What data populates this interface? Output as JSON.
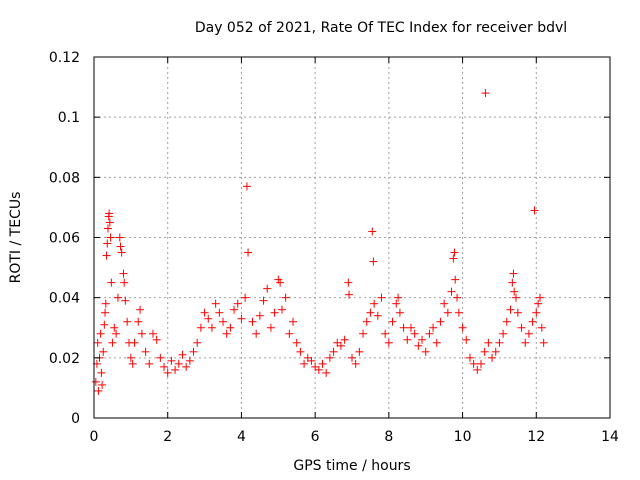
{
  "chart_data": {
    "type": "scatter",
    "title": "Day 052 of 2021, Rate Of TEC Index for receiver bdvl",
    "xlabel": "GPS time / hours",
    "ylabel": "ROTI / TECUs",
    "xlim": [
      0,
      14
    ],
    "ylim": [
      0,
      0.12
    ],
    "xticks": [
      0,
      2,
      4,
      6,
      8,
      10,
      12,
      14
    ],
    "yticks": [
      0,
      0.02,
      0.04,
      0.06,
      0.08,
      0.1,
      0.12
    ],
    "xtick_labels": [
      "0",
      "2",
      "4",
      "6",
      "8",
      "10",
      "12",
      "14"
    ],
    "ytick_labels": [
      "0",
      "0.02",
      "0.04",
      "0.06",
      "0.08",
      "0.1",
      "0.12"
    ],
    "grid": true,
    "marker": "+",
    "color": "#ff0000",
    "series": [
      {
        "points": [
          [
            0.05,
            0.012
          ],
          [
            0.08,
            0.018
          ],
          [
            0.1,
            0.025
          ],
          [
            0.12,
            0.009
          ],
          [
            0.15,
            0.02
          ],
          [
            0.18,
            0.028
          ],
          [
            0.2,
            0.015
          ],
          [
            0.22,
            0.011
          ],
          [
            0.25,
            0.022
          ],
          [
            0.28,
            0.031
          ],
          [
            0.3,
            0.035
          ],
          [
            0.32,
            0.038
          ],
          [
            0.34,
            0.054
          ],
          [
            0.36,
            0.058
          ],
          [
            0.38,
            0.063
          ],
          [
            0.4,
            0.067
          ],
          [
            0.41,
            0.068
          ],
          [
            0.43,
            0.065
          ],
          [
            0.45,
            0.06
          ],
          [
            0.47,
            0.045
          ],
          [
            0.5,
            0.025
          ],
          [
            0.55,
            0.03
          ],
          [
            0.6,
            0.028
          ],
          [
            0.65,
            0.04
          ],
          [
            0.7,
            0.06
          ],
          [
            0.72,
            0.057
          ],
          [
            0.75,
            0.055
          ],
          [
            0.8,
            0.048
          ],
          [
            0.82,
            0.045
          ],
          [
            0.85,
            0.039
          ],
          [
            0.9,
            0.032
          ],
          [
            0.95,
            0.025
          ],
          [
            1.0,
            0.02
          ],
          [
            1.05,
            0.018
          ],
          [
            1.1,
            0.025
          ],
          [
            1.2,
            0.032
          ],
          [
            1.25,
            0.036
          ],
          [
            1.3,
            0.028
          ],
          [
            1.4,
            0.022
          ],
          [
            1.5,
            0.018
          ],
          [
            1.6,
            0.028
          ],
          [
            1.7,
            0.026
          ],
          [
            1.8,
            0.02
          ],
          [
            1.9,
            0.017
          ],
          [
            2.0,
            0.015
          ],
          [
            2.1,
            0.019
          ],
          [
            2.2,
            0.016
          ],
          [
            2.3,
            0.018
          ],
          [
            2.4,
            0.021
          ],
          [
            2.5,
            0.017
          ],
          [
            2.6,
            0.019
          ],
          [
            2.7,
            0.022
          ],
          [
            2.8,
            0.025
          ],
          [
            2.9,
            0.03
          ],
          [
            3.0,
            0.035
          ],
          [
            3.1,
            0.033
          ],
          [
            3.2,
            0.03
          ],
          [
            3.3,
            0.038
          ],
          [
            3.4,
            0.035
          ],
          [
            3.5,
            0.032
          ],
          [
            3.6,
            0.028
          ],
          [
            3.7,
            0.03
          ],
          [
            3.8,
            0.036
          ],
          [
            3.9,
            0.038
          ],
          [
            4.0,
            0.033
          ],
          [
            4.1,
            0.04
          ],
          [
            4.15,
            0.077
          ],
          [
            4.18,
            0.055
          ],
          [
            4.3,
            0.032
          ],
          [
            4.4,
            0.028
          ],
          [
            4.5,
            0.034
          ],
          [
            4.6,
            0.039
          ],
          [
            4.7,
            0.043
          ],
          [
            4.8,
            0.03
          ],
          [
            4.9,
            0.035
          ],
          [
            5.0,
            0.046
          ],
          [
            5.05,
            0.045
          ],
          [
            5.1,
            0.036
          ],
          [
            5.2,
            0.04
          ],
          [
            5.3,
            0.028
          ],
          [
            5.4,
            0.032
          ],
          [
            5.5,
            0.025
          ],
          [
            5.6,
            0.022
          ],
          [
            5.7,
            0.018
          ],
          [
            5.8,
            0.02
          ],
          [
            5.9,
            0.019
          ],
          [
            6.0,
            0.017
          ],
          [
            6.1,
            0.016
          ],
          [
            6.2,
            0.018
          ],
          [
            6.3,
            0.015
          ],
          [
            6.4,
            0.02
          ],
          [
            6.5,
            0.022
          ],
          [
            6.6,
            0.025
          ],
          [
            6.7,
            0.024
          ],
          [
            6.8,
            0.026
          ],
          [
            6.9,
            0.045
          ],
          [
            6.92,
            0.041
          ],
          [
            7.0,
            0.02
          ],
          [
            7.1,
            0.018
          ],
          [
            7.2,
            0.022
          ],
          [
            7.3,
            0.028
          ],
          [
            7.4,
            0.032
          ],
          [
            7.5,
            0.035
          ],
          [
            7.55,
            0.062
          ],
          [
            7.58,
            0.052
          ],
          [
            7.6,
            0.038
          ],
          [
            7.7,
            0.034
          ],
          [
            7.8,
            0.04
          ],
          [
            7.9,
            0.028
          ],
          [
            8.0,
            0.025
          ],
          [
            8.1,
            0.032
          ],
          [
            8.2,
            0.038
          ],
          [
            8.25,
            0.04
          ],
          [
            8.3,
            0.035
          ],
          [
            8.4,
            0.03
          ],
          [
            8.5,
            0.026
          ],
          [
            8.6,
            0.03
          ],
          [
            8.7,
            0.028
          ],
          [
            8.8,
            0.024
          ],
          [
            8.9,
            0.026
          ],
          [
            9.0,
            0.022
          ],
          [
            9.1,
            0.028
          ],
          [
            9.2,
            0.03
          ],
          [
            9.3,
            0.025
          ],
          [
            9.4,
            0.032
          ],
          [
            9.5,
            0.038
          ],
          [
            9.6,
            0.035
          ],
          [
            9.7,
            0.042
          ],
          [
            9.75,
            0.053
          ],
          [
            9.78,
            0.055
          ],
          [
            9.8,
            0.046
          ],
          [
            9.85,
            0.04
          ],
          [
            9.9,
            0.035
          ],
          [
            10.0,
            0.03
          ],
          [
            10.1,
            0.026
          ],
          [
            10.2,
            0.02
          ],
          [
            10.3,
            0.018
          ],
          [
            10.4,
            0.016
          ],
          [
            10.5,
            0.018
          ],
          [
            10.6,
            0.022
          ],
          [
            10.62,
            0.108
          ],
          [
            10.7,
            0.025
          ],
          [
            10.8,
            0.02
          ],
          [
            10.9,
            0.022
          ],
          [
            11.0,
            0.025
          ],
          [
            11.1,
            0.028
          ],
          [
            11.2,
            0.032
          ],
          [
            11.3,
            0.036
          ],
          [
            11.35,
            0.045
          ],
          [
            11.38,
            0.048
          ],
          [
            11.4,
            0.042
          ],
          [
            11.45,
            0.04
          ],
          [
            11.5,
            0.035
          ],
          [
            11.6,
            0.03
          ],
          [
            11.7,
            0.025
          ],
          [
            11.8,
            0.028
          ],
          [
            11.9,
            0.032
          ],
          [
            11.95,
            0.069
          ],
          [
            12.0,
            0.035
          ],
          [
            12.05,
            0.038
          ],
          [
            12.1,
            0.04
          ],
          [
            12.15,
            0.03
          ],
          [
            12.2,
            0.025
          ]
        ]
      }
    ]
  }
}
